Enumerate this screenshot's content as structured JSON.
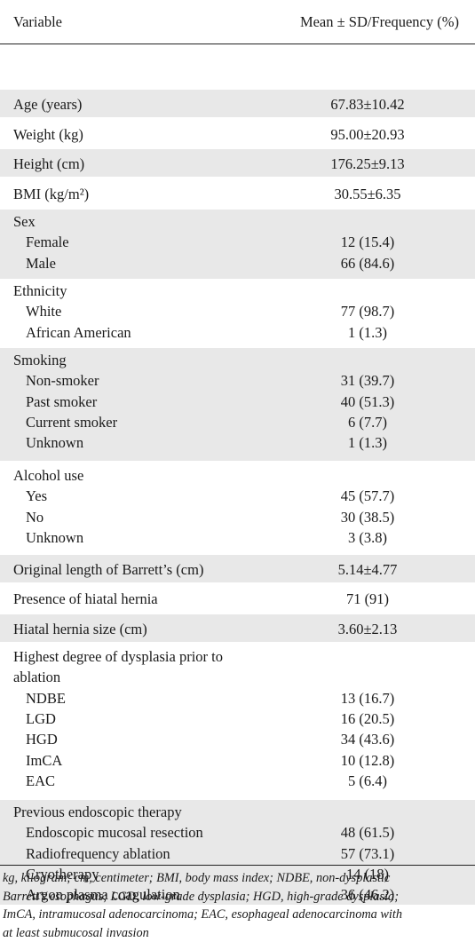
{
  "header": {
    "col1": "Variable",
    "col2": "Mean ± SD/Frequency (%)"
  },
  "rows": [
    {
      "lines": [
        {
          "label": "Age (years)",
          "value": "67.83±10.42"
        }
      ]
    },
    {
      "lines": [
        {
          "label": "Weight (kg)",
          "value": "95.00±20.93"
        }
      ]
    },
    {
      "lines": [
        {
          "label": "Height (cm)",
          "value": "176.25±9.13"
        }
      ]
    },
    {
      "lines": [
        {
          "label": "BMI (kg/m²)",
          "value": "30.55±6.35"
        }
      ]
    },
    {
      "lines": [
        {
          "label": "Sex",
          "value": ""
        },
        {
          "label": "Female",
          "value": "12 (15.4)",
          "indent": true
        },
        {
          "label": "Male",
          "value": "66 (84.6)",
          "indent": true
        }
      ]
    },
    {
      "lines": [
        {
          "label": "Ethnicity",
          "value": ""
        },
        {
          "label": "White",
          "value": "77 (98.7)",
          "indent": true
        },
        {
          "label": "African American",
          "value": "1 (1.3)",
          "indent": true
        }
      ]
    },
    {
      "lines": [
        {
          "label": "Smoking",
          "value": ""
        },
        {
          "label": "Non-smoker",
          "value": "31 (39.7)",
          "indent": true
        },
        {
          "label": "Past smoker",
          "value": "40 (51.3)",
          "indent": true
        },
        {
          "label": "Current smoker",
          "value": "6 (7.7)",
          "indent": true
        },
        {
          "label": "Unknown",
          "value": "1 (1.3)",
          "indent": true
        }
      ]
    },
    {
      "lines": [
        {
          "label": "Alcohol use",
          "value": ""
        },
        {
          "label": "Yes",
          "value": "45 (57.7)",
          "indent": true
        },
        {
          "label": "No",
          "value": "30 (38.5)",
          "indent": true
        },
        {
          "label": "Unknown",
          "value": "3 (3.8)",
          "indent": true
        }
      ]
    },
    {
      "lines": [
        {
          "label": "Original length of Barrett’s (cm)",
          "value": "5.14±4.77"
        }
      ]
    },
    {
      "lines": [
        {
          "label": "Presence of hiatal hernia",
          "value": "71 (91)"
        }
      ]
    },
    {
      "lines": [
        {
          "label": "Hiatal hernia size (cm)",
          "value": "3.60±2.13"
        }
      ]
    },
    {
      "lines": [
        {
          "label": "Highest degree of dysplasia prior to",
          "value": ""
        },
        {
          "label": "ablation",
          "value": ""
        },
        {
          "label": "NDBE",
          "value": "13 (16.7)",
          "indent": true
        },
        {
          "label": "LGD",
          "value": "16 (20.5)",
          "indent": true
        },
        {
          "label": "HGD",
          "value": "34 (43.6)",
          "indent": true
        },
        {
          "label": "ImCA",
          "value": "10 (12.8)",
          "indent": true
        },
        {
          "label": "EAC",
          "value": "5 (6.4)",
          "indent": true
        }
      ]
    },
    {
      "lines": [
        {
          "label": "Previous endoscopic therapy",
          "value": ""
        },
        {
          "label": "Endoscopic mucosal resection",
          "value": "48 (61.5)",
          "indent": true
        },
        {
          "label": "Radiofrequency ablation",
          "value": "57 (73.1)",
          "indent": true
        },
        {
          "label": "Cryotherapy",
          "value": "14 (18)",
          "indent": true
        },
        {
          "label": "Argon plasma coagulation",
          "value": "36 (46.2)",
          "indent": true
        }
      ]
    }
  ],
  "footnote": {
    "lines": [
      "kg, kilogram; cm, centimeter; BMI, body mass index; NDBE, non-dysplastic",
      "Barrett’s esophagus; LGD, low-grade dysplasia; HGD, high-grade dysplasia;",
      "ImCA, intramucosal adenocarcinoma; EAC, esophageal adenocarcinoma with",
      "at least submucosal invasion"
    ]
  }
}
